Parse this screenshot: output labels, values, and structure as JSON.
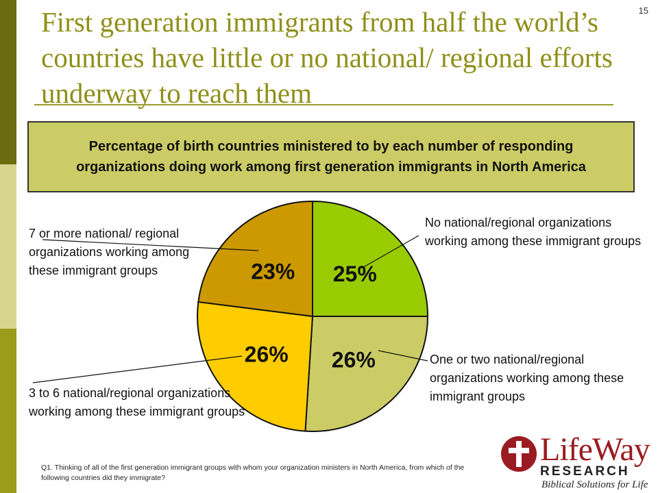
{
  "slide_number": "15",
  "title": "First generation immigrants from half the world’s countries have little or no national/ regional efforts underway to reach them",
  "chart_data": {
    "type": "pie",
    "title": "Percentage of birth countries ministered to by each number of responding organizations doing work among first generation immigrants in North America",
    "slices": [
      {
        "label": "No national/regional organizations working among these immigrant groups",
        "value": 25,
        "display": "25%",
        "color": "#99cc00"
      },
      {
        "label": "One or two national/regional organizations working among these immigrant groups",
        "value": 26,
        "display": "26%",
        "color": "#cccc66"
      },
      {
        "label": "3 to 6 national/regional organizations working among these immigrant groups",
        "value": 26,
        "display": "26%",
        "color": "#ffcc00"
      },
      {
        "label": "7 or more national/ regional organizations working among these immigrant groups",
        "value": 23,
        "display": "23%",
        "color": "#cc9900"
      }
    ],
    "start": "12 o'clock",
    "direction": "clockwise"
  },
  "footnote": "Q1. Thinking of all of the first generation immigrant groups with whom your organization ministers in North America, from which of the following countries did they immigrate?",
  "logo": {
    "name": "LifeWay",
    "division": "RESEARCH",
    "tagline": "Biblical Solutions for Life",
    "brand_color": "#9a1c22"
  }
}
